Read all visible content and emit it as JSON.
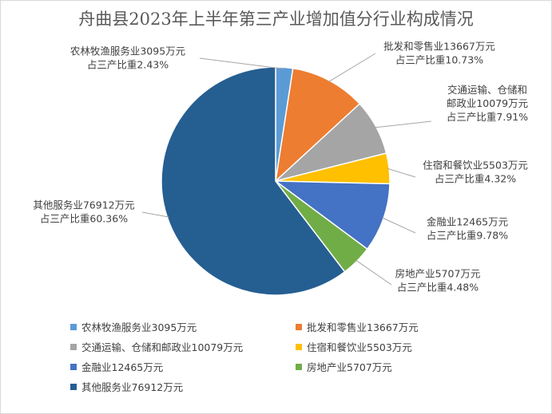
{
  "chart_data": {
    "type": "pie",
    "title": "舟曲县2023年上半年第三产业增加值分行业构成情况",
    "unit": "万元",
    "slices": [
      {
        "name": "农林牧渔服务业",
        "value": 3095,
        "pct": 2.43,
        "color": "#5B9BD5",
        "label_line1": "农林牧渔服务业3095万元",
        "label_line2": "占三产比重2.43%",
        "legend": "农林牧渔服务业3095万元"
      },
      {
        "name": "批发和零售业",
        "value": 13667,
        "pct": 10.73,
        "color": "#ED7D31",
        "label_line1": "批发和零售业13667万元",
        "label_line2": "占三产比重10.73%",
        "legend": "批发和零售业13667万元"
      },
      {
        "name": "交通运输、仓储和邮政业",
        "value": 10079,
        "pct": 7.91,
        "color": "#A5A5A5",
        "label_line1": "交通运输、仓储和",
        "label_line2": "邮政业10079万元",
        "label_line3": "占三产比重7.91%",
        "legend": "交通运输、仓储和邮政业10079万元"
      },
      {
        "name": "住宿和餐饮业",
        "value": 5503,
        "pct": 4.32,
        "color": "#FFC000",
        "label_line1": "住宿和餐饮业5503万元",
        "label_line2": "占三产比重4.32%",
        "legend": "住宿和餐饮业5503万元"
      },
      {
        "name": "金融业",
        "value": 12465,
        "pct": 9.78,
        "color": "#4472C4",
        "label_line1": "金融业12465万元",
        "label_line2": "占三产比重9.78%",
        "legend": "金融业12465万元"
      },
      {
        "name": "房地产业",
        "value": 5707,
        "pct": 4.48,
        "color": "#70AD47",
        "label_line1": "房地产业5707万元",
        "label_line2": "占三产比重4.48%",
        "legend": "房地产业5707万元"
      },
      {
        "name": "其他服务业",
        "value": 76912,
        "pct": 60.36,
        "color": "#255E91",
        "label_line1": "其他服务业76912万元",
        "label_line2": "占三产比重60.36%",
        "legend": "其他服务业76912万元"
      }
    ],
    "legend_position": "bottom"
  }
}
